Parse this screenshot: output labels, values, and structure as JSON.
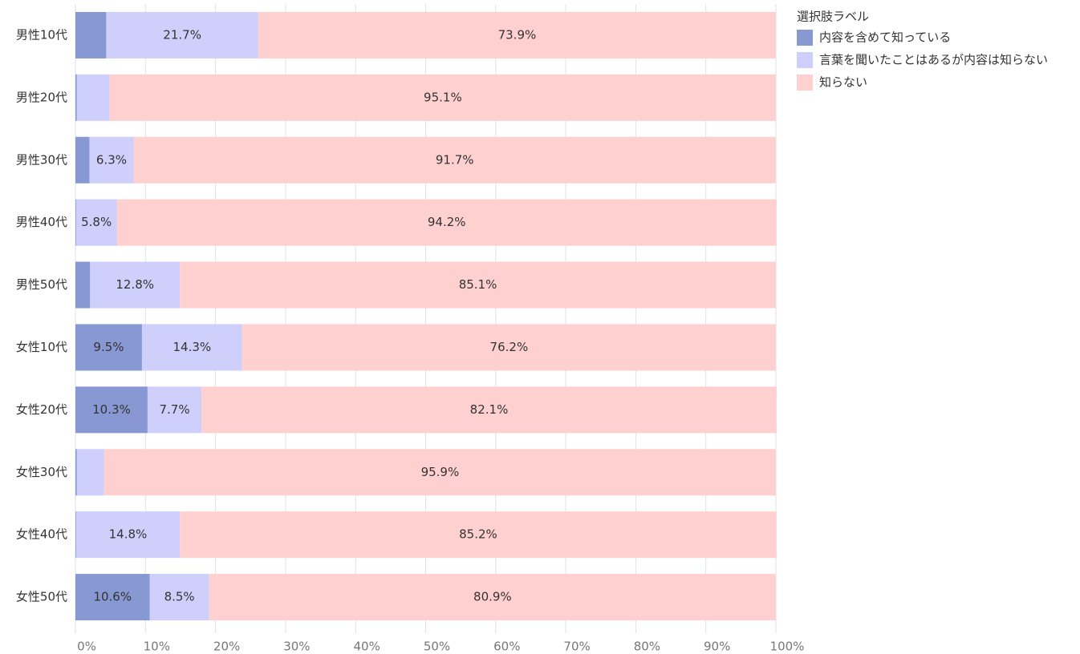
{
  "chart_data": {
    "type": "bar",
    "orientation": "horizontal",
    "stacked": true,
    "legend_title": "選択肢ラベル",
    "legend_position": "right",
    "categories": [
      "男性10代",
      "男性20代",
      "男性30代",
      "男性40代",
      "男性50代",
      "女性10代",
      "女性20代",
      "女性30代",
      "女性40代",
      "女性50代"
    ],
    "series": [
      {
        "name": "内容を含めて知っている",
        "color": "#8898d2",
        "label_color": "#ffffff",
        "values": [
          4.4,
          0.2,
          2.0,
          0.1,
          2.1,
          9.5,
          10.3,
          0.2,
          0.1,
          10.6
        ],
        "value_labels": [
          null,
          null,
          null,
          null,
          null,
          "9.5%",
          "10.3%",
          null,
          null,
          "10.6%"
        ]
      },
      {
        "name": "言葉を聞いたことはあるが内容は知らない",
        "color": "#cfcffc",
        "label_color": "#000000",
        "values": [
          21.7,
          4.7,
          6.3,
          5.8,
          12.8,
          14.3,
          7.7,
          3.9,
          14.8,
          8.5
        ],
        "value_labels": [
          "21.7%",
          null,
          "6.3%",
          "5.8%",
          "12.8%",
          "14.3%",
          "7.7%",
          null,
          "14.8%",
          "8.5%"
        ]
      },
      {
        "name": "知らない",
        "color": "#ffd0d0",
        "label_color": "#000000",
        "values": [
          73.9,
          95.1,
          91.7,
          94.2,
          85.1,
          76.2,
          82.1,
          95.9,
          85.2,
          80.9
        ],
        "value_labels": [
          "73.9%",
          "95.1%",
          "91.7%",
          "94.2%",
          "85.1%",
          "76.2%",
          "82.1%",
          "95.9%",
          "85.2%",
          "80.9%"
        ]
      }
    ],
    "xlim": [
      0,
      100
    ],
    "xticks": [
      {
        "value": 0,
        "label": "0%"
      },
      {
        "value": 10,
        "label": "10%"
      },
      {
        "value": 20,
        "label": "20%"
      },
      {
        "value": 30,
        "label": "30%"
      },
      {
        "value": 40,
        "label": "40%"
      },
      {
        "value": 50,
        "label": "50%"
      },
      {
        "value": 60,
        "label": "60%"
      },
      {
        "value": 70,
        "label": "70%"
      },
      {
        "value": 80,
        "label": "80%"
      },
      {
        "value": 90,
        "label": "90%"
      },
      {
        "value": 100,
        "label": "100%"
      }
    ],
    "grid": true
  }
}
